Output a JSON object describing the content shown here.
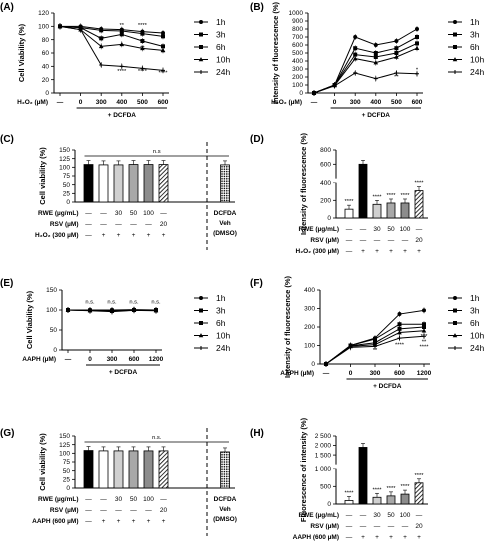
{
  "panels": [
    {
      "id": "A",
      "kind": "line",
      "ylabel": "Cell Viability (%)",
      "yticks": [
        0,
        20,
        40,
        60,
        80,
        100,
        120
      ],
      "ylim": [
        0,
        120
      ],
      "x_axis_label": "H₂O₂ (µM)",
      "x_categories": [
        "—",
        "0",
        "300",
        "400",
        "500",
        "600"
      ],
      "bracket_label": "+ DCFDA",
      "legend": [
        "1h",
        "3h",
        "6h",
        "10h",
        "24h"
      ],
      "series_values": [
        [
          100,
          100,
          96,
          95,
          92,
          90
        ],
        [
          100,
          98,
          94,
          93,
          89,
          85
        ],
        [
          100,
          98,
          82,
          88,
          78,
          70
        ],
        [
          100,
          95,
          70,
          73,
          67,
          64
        ],
        [
          100,
          95,
          42,
          40,
          37,
          34
        ]
      ],
      "sig_labels": [
        [
          "**",
          3,
          99
        ],
        [
          "****",
          4,
          99
        ],
        [
          "***",
          2,
          79
        ],
        [
          "**",
          4,
          65
        ],
        [
          "****",
          3,
          30
        ],
        [
          "****",
          4,
          30
        ],
        [
          "****",
          5,
          28
        ],
        [
          "**",
          5,
          58
        ],
        [
          "*",
          5,
          80
        ]
      ]
    },
    {
      "id": "B",
      "kind": "line",
      "ylabel": "Intensity of fluorescence (%)",
      "yticks": [
        0,
        100,
        200,
        300,
        400,
        500,
        600,
        700,
        800,
        900,
        1000
      ],
      "ylim": [
        0,
        1000
      ],
      "x_axis_label": "H₂O₂ (µM)",
      "x_categories": [
        "—",
        "0",
        "300",
        "400",
        "500",
        "600"
      ],
      "bracket_label": "+ DCFDA",
      "legend": [
        "1h",
        "3h",
        "6h",
        "10h",
        "24h"
      ],
      "series_values": [
        [
          0,
          100,
          700,
          600,
          650,
          800
        ],
        [
          0,
          100,
          560,
          500,
          560,
          700
        ],
        [
          0,
          100,
          480,
          450,
          500,
          620
        ],
        [
          0,
          95,
          430,
          380,
          450,
          560
        ],
        [
          0,
          90,
          250,
          180,
          250,
          240
        ]
      ],
      "sig_labels": [
        [
          "**",
          2,
          210
        ],
        [
          "**",
          4,
          180
        ],
        [
          "*",
          5,
          270
        ]
      ]
    },
    {
      "id": "C",
      "kind": "bar",
      "ylabel": "Cell viability (%)",
      "yticks": [
        0,
        25,
        50,
        75,
        100,
        125,
        150
      ],
      "ylim": [
        0,
        150
      ],
      "values": [
        108,
        107,
        107,
        108,
        108,
        108,
        107
      ],
      "patterns": [
        "black",
        "white",
        "lightgray",
        "gray",
        "darkgray",
        "hatch",
        "dots"
      ],
      "sig_text": "n.s",
      "rows": [
        {
          "label": "RWE (µg/mL)",
          "cells": [
            "—",
            "—",
            "30",
            "50",
            "100",
            "—"
          ]
        },
        {
          "label": "RSV (µM)",
          "cells": [
            "—",
            "—",
            "—",
            "—",
            "—",
            "20"
          ]
        },
        {
          "label": "H₂O₂ (300 µM)",
          "cells": [
            "—",
            "+",
            "+",
            "+",
            "+",
            "+"
          ]
        }
      ],
      "veh_lines": [
        "DCFDA",
        "Veh",
        "(DMSO)"
      ]
    },
    {
      "id": "D",
      "kind": "bar",
      "ylabel": "Intensity of fluorescence (%)",
      "values": [
        100,
        600,
        155,
        170,
        170,
        310
      ],
      "patterns": [
        "white",
        "black",
        "lightgray",
        "gray",
        "darkgray",
        "hatch"
      ],
      "sig": [
        "****",
        "",
        "****",
        "****",
        "****",
        "****"
      ],
      "rows": [
        {
          "label": "RWE (µg/mL)",
          "cells": [
            "—",
            "—",
            "30",
            "50",
            "100",
            "—"
          ]
        },
        {
          "label": "RSV (µM)",
          "cells": [
            "—",
            "—",
            "—",
            "—",
            "—",
            "20"
          ]
        },
        {
          "label": "H₂O₂ (300 µM)",
          "cells": [
            "—",
            "+",
            "+",
            "+",
            "+",
            "+"
          ]
        }
      ]
    },
    {
      "id": "E",
      "kind": "line",
      "ylabel": "Cell Viability (%)",
      "yticks": [
        0,
        50,
        100,
        150
      ],
      "ylim": [
        0,
        150
      ],
      "x_axis_label": "AAPH (µM)",
      "x_categories": [
        "—",
        "0",
        "300",
        "600",
        "1200"
      ],
      "bracket_label": "+ DCFDA",
      "legend": [
        "1h",
        "3h",
        "6h",
        "10h",
        "24h"
      ],
      "series_values": [
        [
          100,
          100,
          100,
          101,
          100
        ],
        [
          100,
          99,
          99,
          100,
          100
        ],
        [
          100,
          99,
          98,
          100,
          99
        ],
        [
          100,
          99,
          97,
          100,
          99
        ],
        [
          100,
          98,
          96,
          99,
          98
        ]
      ],
      "sig_labels": [
        [
          "n.s.",
          1,
          116
        ],
        [
          "n.s.",
          2,
          116
        ],
        [
          "n.s.",
          3,
          116
        ],
        [
          "n.s.",
          4,
          116
        ]
      ]
    },
    {
      "id": "F",
      "kind": "line",
      "ylabel": "Intensity of fluorescence (%)",
      "yticks": [
        0,
        100,
        200,
        300,
        400
      ],
      "ylim": [
        0,
        400
      ],
      "x_axis_label": "AAPH (µM)",
      "x_categories": [
        "—",
        "0",
        "300",
        "600",
        "1200"
      ],
      "bracket_label": "+ DCFDA",
      "legend": [
        "1h",
        "3h",
        "6h",
        "10h",
        "24h"
      ],
      "series_values": [
        [
          0,
          100,
          140,
          270,
          290
        ],
        [
          0,
          100,
          135,
          215,
          215
        ],
        [
          0,
          98,
          115,
          190,
          200
        ],
        [
          0,
          95,
          105,
          170,
          180
        ],
        [
          0,
          90,
          95,
          140,
          150
        ]
      ],
      "sig_labels": [
        [
          "**",
          2,
          65
        ],
        [
          "****",
          3,
          95
        ],
        [
          "****",
          4,
          85
        ],
        [
          "***",
          4,
          140
        ],
        [
          "**",
          4,
          110
        ]
      ]
    },
    {
      "id": "G",
      "kind": "bar",
      "ylabel": "Cell viability (%)",
      "yticks": [
        0,
        25,
        50,
        75,
        100,
        125,
        150
      ],
      "ylim": [
        0,
        150
      ],
      "values": [
        108,
        107,
        107,
        107,
        107,
        107,
        104
      ],
      "patterns": [
        "black",
        "white",
        "lightgray",
        "gray",
        "darkgray",
        "hatch",
        "dots"
      ],
      "sig_text": "n.s.",
      "rows": [
        {
          "label": "RWE (µg/mL)",
          "cells": [
            "—",
            "—",
            "30",
            "50",
            "100",
            "—"
          ]
        },
        {
          "label": "RSV (µM)",
          "cells": [
            "—",
            "—",
            "—",
            "—",
            "—",
            "20"
          ]
        },
        {
          "label": "AAPH (600 µM)",
          "cells": [
            "—",
            "+",
            "+",
            "+",
            "+",
            "+"
          ]
        }
      ],
      "veh_lines": [
        "DCFDA",
        "Veh",
        "(DMSO)"
      ]
    },
    {
      "id": "H",
      "kind": "bar",
      "ylabel": "Fluorescence of intensity (%)",
      "values": [
        100,
        1900,
        190,
        230,
        280,
        600
      ],
      "patterns": [
        "white",
        "black",
        "lightgray",
        "gray",
        "darkgray",
        "hatch"
      ],
      "sig": [
        "****",
        "",
        "****",
        "****",
        "****",
        "****"
      ],
      "rows": [
        {
          "label": "RWE (µg/mL)",
          "cells": [
            "—",
            "—",
            "30",
            "50",
            "100",
            "—"
          ]
        },
        {
          "label": "RSV (µM)",
          "cells": [
            "—",
            "—",
            "—",
            "—",
            "—",
            "20"
          ]
        },
        {
          "label": "AAPH (600 µM)",
          "cells": [
            "—",
            "+",
            "+",
            "+",
            "+",
            "+"
          ]
        }
      ]
    }
  ],
  "chart_data": [
    {
      "panel": "A",
      "type": "line",
      "ylabel": "Cell Viability (%)",
      "xlabel": "H₂O₂ (µM)",
      "categories": [
        "—",
        "0",
        "300",
        "400",
        "500",
        "600"
      ],
      "ylim": [
        0,
        120
      ],
      "series": [
        {
          "name": "1h",
          "values": [
            100,
            100,
            96,
            95,
            92,
            90
          ]
        },
        {
          "name": "3h",
          "values": [
            100,
            98,
            94,
            93,
            89,
            85
          ]
        },
        {
          "name": "6h",
          "values": [
            100,
            98,
            82,
            88,
            78,
            70
          ]
        },
        {
          "name": "10h",
          "values": [
            100,
            95,
            70,
            73,
            67,
            64
          ]
        },
        {
          "name": "24h",
          "values": [
            100,
            95,
            42,
            40,
            37,
            34
          ]
        }
      ]
    },
    {
      "panel": "B",
      "type": "line",
      "ylabel": "Intensity of fluorescence (%)",
      "xlabel": "H₂O₂ (µM)",
      "categories": [
        "—",
        "0",
        "300",
        "400",
        "500",
        "600"
      ],
      "ylim": [
        0,
        1000
      ],
      "series": [
        {
          "name": "1h",
          "values": [
            0,
            100,
            700,
            600,
            650,
            800
          ]
        },
        {
          "name": "3h",
          "values": [
            0,
            100,
            560,
            500,
            560,
            700
          ]
        },
        {
          "name": "6h",
          "values": [
            0,
            100,
            480,
            450,
            500,
            620
          ]
        },
        {
          "name": "10h",
          "values": [
            0,
            95,
            430,
            380,
            450,
            560
          ]
        },
        {
          "name": "24h",
          "values": [
            0,
            90,
            250,
            180,
            250,
            240
          ]
        }
      ]
    },
    {
      "panel": "C",
      "type": "bar",
      "ylabel": "Cell viability (%)",
      "ylim": [
        0,
        150
      ],
      "categories": [
        "1",
        "2",
        "3",
        "4",
        "5",
        "6",
        "7"
      ],
      "values": [
        108,
        107,
        107,
        108,
        108,
        108,
        107
      ]
    },
    {
      "panel": "D",
      "type": "bar",
      "ylabel": "Intensity of fluorescence (%)",
      "categories": [
        "1",
        "2",
        "3",
        "4",
        "5",
        "6"
      ],
      "values": [
        100,
        600,
        155,
        170,
        170,
        310
      ]
    },
    {
      "panel": "E",
      "type": "line",
      "ylabel": "Cell Viability (%)",
      "xlabel": "AAPH (µM)",
      "categories": [
        "—",
        "0",
        "300",
        "600",
        "1200"
      ],
      "ylim": [
        0,
        150
      ],
      "series": [
        {
          "name": "1h",
          "values": [
            100,
            100,
            100,
            101,
            100
          ]
        },
        {
          "name": "3h",
          "values": [
            100,
            99,
            99,
            100,
            100
          ]
        },
        {
          "name": "6h",
          "values": [
            100,
            99,
            98,
            100,
            99
          ]
        },
        {
          "name": "10h",
          "values": [
            100,
            99,
            97,
            100,
            99
          ]
        },
        {
          "name": "24h",
          "values": [
            100,
            98,
            96,
            99,
            98
          ]
        }
      ]
    },
    {
      "panel": "F",
      "type": "line",
      "ylabel": "Intensity of fluorescence (%)",
      "xlabel": "AAPH (µM)",
      "categories": [
        "—",
        "0",
        "300",
        "600",
        "1200"
      ],
      "ylim": [
        0,
        400
      ],
      "series": [
        {
          "name": "1h",
          "values": [
            0,
            100,
            140,
            270,
            290
          ]
        },
        {
          "name": "3h",
          "values": [
            0,
            100,
            135,
            215,
            215
          ]
        },
        {
          "name": "6h",
          "values": [
            0,
            98,
            115,
            190,
            200
          ]
        },
        {
          "name": "10h",
          "values": [
            0,
            95,
            105,
            170,
            180
          ]
        },
        {
          "name": "24h",
          "values": [
            0,
            90,
            95,
            140,
            150
          ]
        }
      ]
    },
    {
      "panel": "G",
      "type": "bar",
      "ylabel": "Cell viability (%)",
      "ylim": [
        0,
        150
      ],
      "categories": [
        "1",
        "2",
        "3",
        "4",
        "5",
        "6",
        "7"
      ],
      "values": [
        108,
        107,
        107,
        107,
        107,
        107,
        104
      ]
    },
    {
      "panel": "H",
      "type": "bar",
      "ylabel": "Fluorescence of intensity (%)",
      "categories": [
        "1",
        "2",
        "3",
        "4",
        "5",
        "6"
      ],
      "values": [
        100,
        1900,
        190,
        230,
        280,
        600
      ]
    }
  ]
}
